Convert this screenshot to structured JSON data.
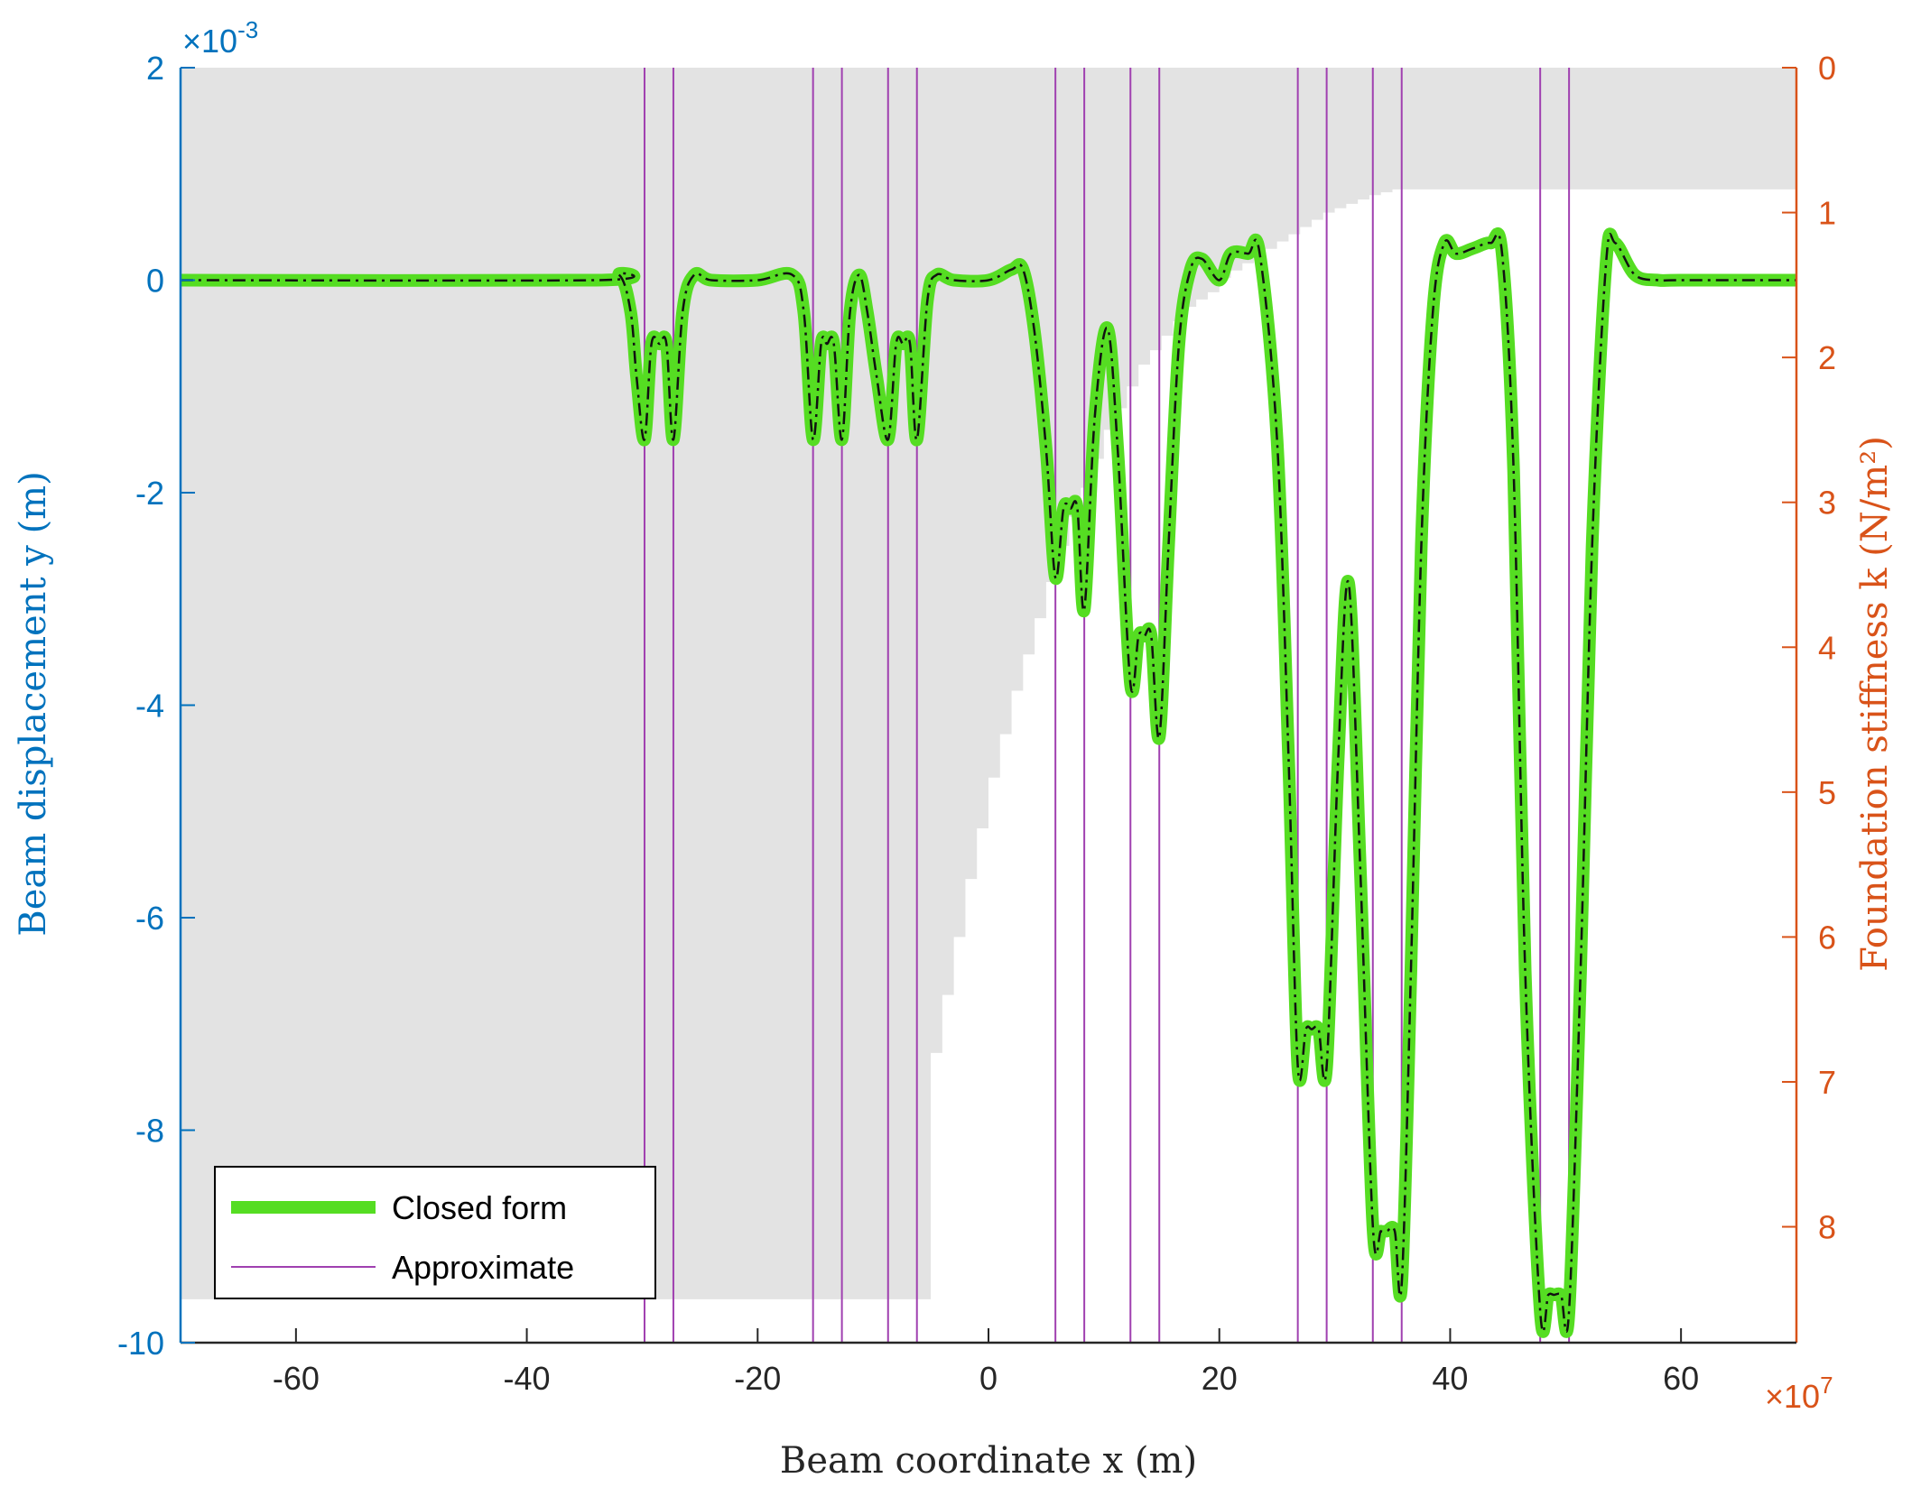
{
  "chart_data": {
    "type": "line",
    "xlabel": "Beam coordinate x (m)",
    "xlim": [
      -70,
      70
    ],
    "x_ticks": [
      -60,
      -40,
      -20,
      0,
      20,
      40,
      60
    ],
    "ylabel_left": "Beam displacement y (m)",
    "ylim_left": [
      -10,
      2
    ],
    "y_ticks_left": [
      -10,
      -8,
      -6,
      -4,
      -2,
      0,
      2
    ],
    "y_exponent_left": "×10",
    "y_exponent_left_power": "-3",
    "ylabel_right": "Foundation stiffness k (N/m²)",
    "ylim_right": [
      0,
      8.8
    ],
    "y_ticks_right": [
      0,
      1,
      2,
      3,
      4,
      5,
      6,
      7,
      8
    ],
    "y_right_direction": "reversed",
    "x_exponent_right": "×10",
    "x_exponent_right_power": "7",
    "colors": {
      "left_axis": "#0072BD",
      "right_axis": "#D95319",
      "closed_form": "#55DD22",
      "approximate_mark": "#A040B0",
      "approximate_line": "#111111",
      "stiffness_fill": "#E3E3E3"
    },
    "legend": {
      "placement": "bottom-left",
      "entries": [
        "Closed form",
        "Approximate"
      ]
    },
    "stiffness_profile": {
      "x": [
        -70,
        -5,
        -4,
        -3,
        -2,
        -1,
        0,
        1,
        2,
        3,
        4,
        5,
        6,
        7,
        8,
        9,
        10,
        11,
        12,
        13,
        14,
        15,
        16,
        17,
        18,
        19,
        20,
        21,
        22,
        23,
        24,
        25,
        26,
        27,
        28,
        29,
        30,
        31,
        32,
        33,
        34,
        35,
        36,
        70
      ],
      "k": [
        8.5,
        6.8,
        6.4,
        6.0,
        5.6,
        5.25,
        4.9,
        4.6,
        4.3,
        4.05,
        3.8,
        3.55,
        3.3,
        3.1,
        2.9,
        2.7,
        2.5,
        2.35,
        2.2,
        2.05,
        1.95,
        1.85,
        1.75,
        1.65,
        1.6,
        1.55,
        1.45,
        1.4,
        1.35,
        1.3,
        1.25,
        1.2,
        1.15,
        1.1,
        1.05,
        1.0,
        0.97,
        0.94,
        0.91,
        0.88,
        0.86,
        0.84,
        0.84,
        0.84
      ]
    },
    "load_positions": [
      -29.8,
      -27.3,
      -15.2,
      -12.7,
      -8.7,
      -6.2,
      5.8,
      8.3,
      12.3,
      14.8,
      26.8,
      29.3,
      33.3,
      35.8,
      47.8,
      50.3
    ],
    "displacement_profile": {
      "x": [
        -70,
        -34,
        -32,
        -31,
        -30.5,
        -29.8,
        -29.2,
        -28.5,
        -27.9,
        -27.3,
        -26.5,
        -25.5,
        -24,
        -20,
        -17,
        -16,
        -15.2,
        -14.5,
        -14,
        -13.4,
        -12.7,
        -12,
        -11.2,
        -10.5,
        -9.7,
        -8.7,
        -8,
        -7.4,
        -6.8,
        -6.2,
        -5.3,
        -4.5,
        -3,
        0,
        2,
        3,
        4,
        5,
        5.8,
        6.5,
        7.1,
        7.7,
        8.3,
        9.2,
        10.3,
        11.2,
        12.3,
        13,
        13.5,
        14.1,
        14.8,
        15.6,
        16.5,
        17.5,
        18.5,
        20,
        21,
        22.5,
        23.5,
        25,
        26,
        26.8,
        27.5,
        28,
        28.6,
        29.3,
        30.3,
        31.2,
        32.2,
        33.3,
        34,
        34.5,
        35.2,
        35.8,
        36.6,
        37.5,
        38.5,
        39.5,
        40.5,
        42,
        43.5,
        44.5,
        45.5,
        46.5,
        47.8,
        48.5,
        49,
        49.6,
        50.3,
        51.3,
        52.3,
        53.5,
        54.3,
        56,
        58,
        60,
        70
      ],
      "y": [
        0,
        0,
        0.05,
        -0.3,
        -0.9,
        -1.5,
        -0.6,
        -0.6,
        -0.6,
        -1.5,
        -0.3,
        0.05,
        0.0,
        0.0,
        0.05,
        -0.3,
        -1.5,
        -0.6,
        -0.6,
        -0.6,
        -1.5,
        -0.3,
        0.05,
        -0.3,
        -0.9,
        -1.5,
        -0.6,
        -0.6,
        -0.6,
        -1.5,
        -0.2,
        0.05,
        0.0,
        0.0,
        0.1,
        0.1,
        -0.5,
        -1.6,
        -2.8,
        -2.15,
        -2.15,
        -2.15,
        -3.1,
        -1.3,
        -0.45,
        -1.6,
        -3.8,
        -3.35,
        -3.35,
        -3.35,
        -4.3,
        -2.5,
        -0.6,
        0.1,
        0.2,
        0.0,
        0.25,
        0.25,
        0.25,
        -1.5,
        -4.5,
        -7.4,
        -7.05,
        -7.05,
        -7.05,
        -7.4,
        -4.5,
        -2.85,
        -5.5,
        -8.9,
        -8.95,
        -8.95,
        -8.95,
        -9.45,
        -6.5,
        -2.5,
        -0.3,
        0.35,
        0.25,
        0.3,
        0.35,
        0.25,
        -1.8,
        -6.5,
        -9.7,
        -9.55,
        -9.55,
        -9.55,
        -9.7,
        -6.5,
        -2.5,
        0.15,
        0.35,
        0.05,
        0.0,
        0.0,
        0.0
      ]
    }
  }
}
